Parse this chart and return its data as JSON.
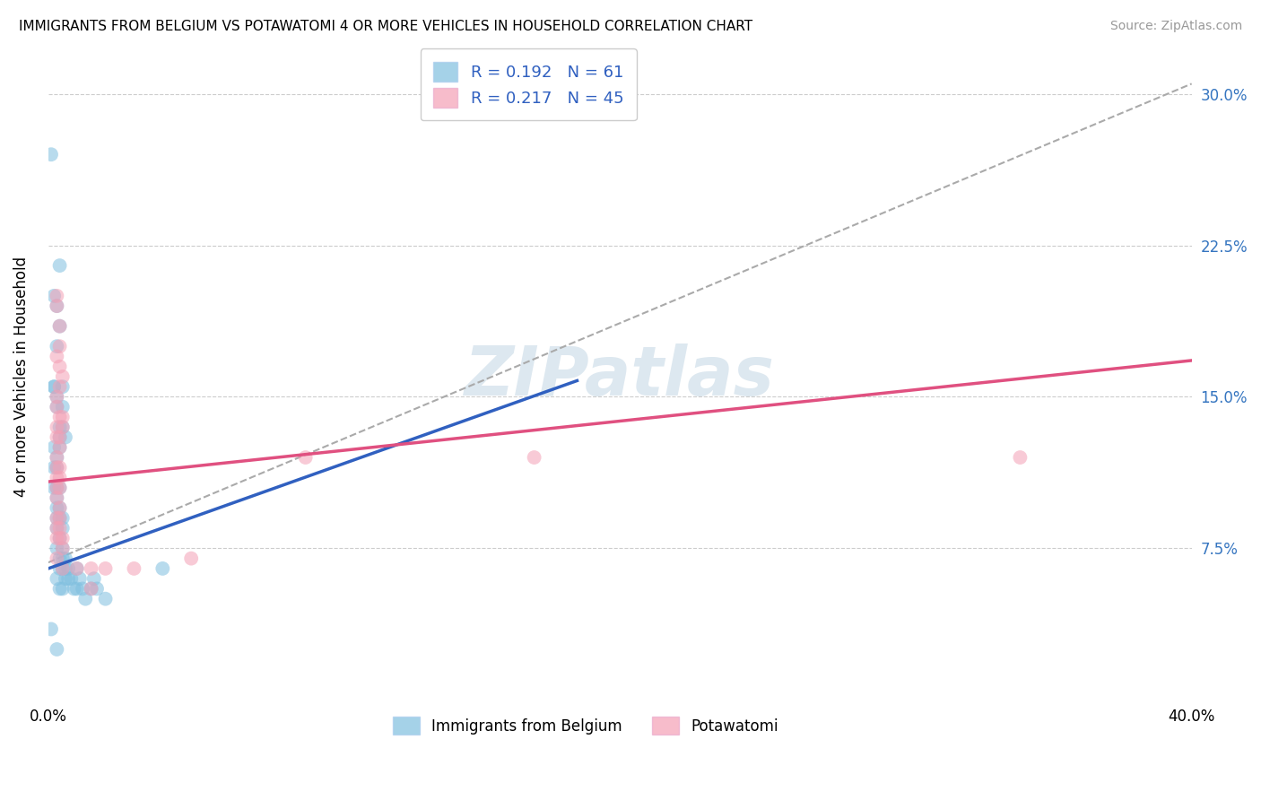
{
  "title": "IMMIGRANTS FROM BELGIUM VS POTAWATOMI 4 OR MORE VEHICLES IN HOUSEHOLD CORRELATION CHART",
  "source": "Source: ZipAtlas.com",
  "ylabel": "4 or more Vehicles in Household",
  "ytick_labels": [
    "7.5%",
    "15.0%",
    "22.5%",
    "30.0%"
  ],
  "ytick_values": [
    0.075,
    0.15,
    0.225,
    0.3
  ],
  "xlim": [
    0.0,
    0.4
  ],
  "ylim": [
    0.0,
    0.32
  ],
  "legend_label1": "R = 0.192   N = 61",
  "legend_label2": "R = 0.217   N = 45",
  "color_blue": "#7fbfdf",
  "color_pink": "#f4a0b5",
  "color_blue_line": "#3060c0",
  "color_pink_line": "#e05080",
  "color_dashed": "#aaaaaa",
  "blue_line": [
    [
      0.0,
      0.065
    ],
    [
      0.185,
      0.158
    ]
  ],
  "pink_line": [
    [
      0.0,
      0.108
    ],
    [
      0.4,
      0.168
    ]
  ],
  "dashed_line": [
    [
      0.0,
      0.068
    ],
    [
      0.4,
      0.305
    ]
  ],
  "blue_scatter": [
    [
      0.001,
      0.27
    ],
    [
      0.002,
      0.2
    ],
    [
      0.003,
      0.195
    ],
    [
      0.003,
      0.175
    ],
    [
      0.004,
      0.215
    ],
    [
      0.002,
      0.155
    ],
    [
      0.004,
      0.185
    ],
    [
      0.002,
      0.155
    ],
    [
      0.005,
      0.155
    ],
    [
      0.005,
      0.145
    ],
    [
      0.003,
      0.145
    ],
    [
      0.002,
      0.125
    ],
    [
      0.002,
      0.115
    ],
    [
      0.002,
      0.105
    ],
    [
      0.003,
      0.15
    ],
    [
      0.004,
      0.135
    ],
    [
      0.004,
      0.125
    ],
    [
      0.005,
      0.135
    ],
    [
      0.006,
      0.13
    ],
    [
      0.004,
      0.13
    ],
    [
      0.003,
      0.12
    ],
    [
      0.003,
      0.115
    ],
    [
      0.003,
      0.105
    ],
    [
      0.003,
      0.1
    ],
    [
      0.004,
      0.105
    ],
    [
      0.003,
      0.09
    ],
    [
      0.003,
      0.095
    ],
    [
      0.003,
      0.085
    ],
    [
      0.004,
      0.09
    ],
    [
      0.004,
      0.095
    ],
    [
      0.003,
      0.075
    ],
    [
      0.004,
      0.08
    ],
    [
      0.005,
      0.085
    ],
    [
      0.005,
      0.09
    ],
    [
      0.005,
      0.075
    ],
    [
      0.005,
      0.07
    ],
    [
      0.004,
      0.07
    ],
    [
      0.004,
      0.065
    ],
    [
      0.005,
      0.065
    ],
    [
      0.006,
      0.07
    ],
    [
      0.006,
      0.065
    ],
    [
      0.003,
      0.06
    ],
    [
      0.004,
      0.055
    ],
    [
      0.005,
      0.055
    ],
    [
      0.006,
      0.06
    ],
    [
      0.007,
      0.065
    ],
    [
      0.007,
      0.06
    ],
    [
      0.008,
      0.06
    ],
    [
      0.009,
      0.055
    ],
    [
      0.01,
      0.055
    ],
    [
      0.01,
      0.065
    ],
    [
      0.011,
      0.06
    ],
    [
      0.012,
      0.055
    ],
    [
      0.013,
      0.05
    ],
    [
      0.015,
      0.055
    ],
    [
      0.016,
      0.06
    ],
    [
      0.017,
      0.055
    ],
    [
      0.02,
      0.05
    ],
    [
      0.04,
      0.065
    ],
    [
      0.001,
      0.035
    ],
    [
      0.003,
      0.025
    ]
  ],
  "pink_scatter": [
    [
      0.003,
      0.2
    ],
    [
      0.003,
      0.195
    ],
    [
      0.004,
      0.185
    ],
    [
      0.004,
      0.175
    ],
    [
      0.003,
      0.17
    ],
    [
      0.004,
      0.165
    ],
    [
      0.005,
      0.16
    ],
    [
      0.004,
      0.155
    ],
    [
      0.003,
      0.15
    ],
    [
      0.003,
      0.145
    ],
    [
      0.004,
      0.14
    ],
    [
      0.005,
      0.14
    ],
    [
      0.005,
      0.135
    ],
    [
      0.003,
      0.135
    ],
    [
      0.003,
      0.13
    ],
    [
      0.004,
      0.13
    ],
    [
      0.004,
      0.125
    ],
    [
      0.003,
      0.12
    ],
    [
      0.003,
      0.115
    ],
    [
      0.004,
      0.115
    ],
    [
      0.003,
      0.11
    ],
    [
      0.004,
      0.11
    ],
    [
      0.003,
      0.105
    ],
    [
      0.004,
      0.105
    ],
    [
      0.003,
      0.1
    ],
    [
      0.004,
      0.095
    ],
    [
      0.003,
      0.09
    ],
    [
      0.004,
      0.09
    ],
    [
      0.003,
      0.085
    ],
    [
      0.004,
      0.085
    ],
    [
      0.003,
      0.08
    ],
    [
      0.004,
      0.08
    ],
    [
      0.005,
      0.08
    ],
    [
      0.005,
      0.075
    ],
    [
      0.003,
      0.07
    ],
    [
      0.005,
      0.065
    ],
    [
      0.01,
      0.065
    ],
    [
      0.015,
      0.055
    ],
    [
      0.015,
      0.065
    ],
    [
      0.02,
      0.065
    ],
    [
      0.03,
      0.065
    ],
    [
      0.05,
      0.07
    ],
    [
      0.09,
      0.12
    ],
    [
      0.17,
      0.12
    ],
    [
      0.34,
      0.12
    ]
  ]
}
